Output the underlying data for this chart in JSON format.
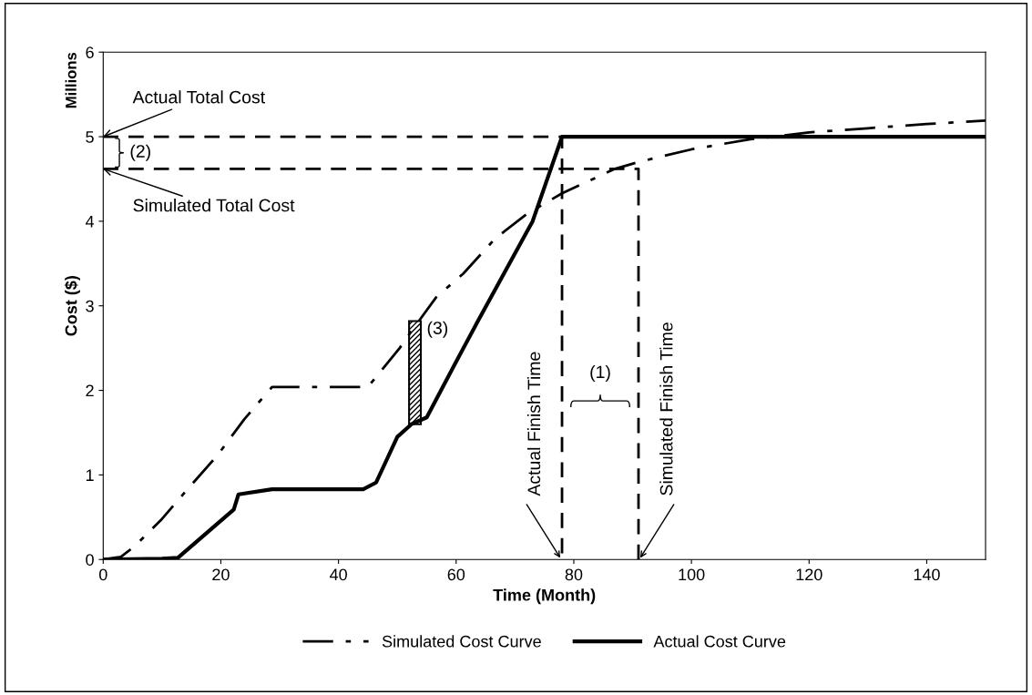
{
  "chart_data": {
    "type": "line",
    "xlabel": "Time (Month)",
    "ylabel": "Cost ($)",
    "xlim": [
      0,
      150
    ],
    "ylim": [
      0,
      6
    ],
    "xticks": [
      0,
      20,
      40,
      60,
      80,
      100,
      120,
      140
    ],
    "yticks": [
      0,
      1,
      2,
      3,
      4,
      5,
      6
    ],
    "grid": false,
    "legend": "bottom",
    "marker": "none",
    "series": [
      {
        "name": "Simulated Cost Curve",
        "color": "#000000",
        "line_style": "dashdot",
        "x": [
          0,
          3,
          5.4,
          10,
          14.7,
          19.4,
          24,
          28.7,
          45,
          50.4,
          52.4,
          56.6,
          61.2,
          66.7,
          72.1,
          78,
          87,
          91,
          100,
          110,
          120,
          130,
          140,
          150
        ],
        "values": [
          0,
          0.03,
          0.16,
          0.48,
          0.86,
          1.23,
          1.66,
          2.04,
          2.04,
          2.5,
          2.7,
          3.1,
          3.38,
          3.8,
          4.09,
          4.33,
          4.62,
          4.7,
          4.85,
          4.97,
          5.05,
          5.1,
          5.15,
          5.19
        ]
      },
      {
        "name": "Actual Cost Curve",
        "color": "#000000",
        "line_style": "solid",
        "x": [
          0,
          10,
          12.7,
          22.2,
          23,
          28.7,
          44.2,
          46.4,
          50,
          52.4,
          55,
          59.7,
          63.7,
          73,
          78,
          150
        ],
        "values": [
          0,
          0.01,
          0.02,
          0.59,
          0.77,
          0.83,
          0.83,
          0.91,
          1.45,
          1.6,
          1.68,
          2.3,
          2.82,
          4.0,
          5.0,
          5.0
        ]
      },
      {
        "color": "#000000",
        "line_style": "dashed",
        "x": [
          0,
          78,
          78
        ],
        "values": [
          5,
          5,
          0
        ]
      },
      {
        "color": "#000000",
        "line_style": "dashed",
        "x": [
          0,
          91,
          91
        ],
        "values": [
          4.62,
          4.62,
          0
        ]
      }
    ],
    "annotations": [
      "Millions",
      {
        "text": "Actual Total Cost",
        "x": 0,
        "y": 5
      },
      {
        "text": "Simulated Total Cost",
        "x": 0,
        "y": 4.62
      },
      "(2)",
      {
        "text": "(3)",
        "x": 53,
        "y": 2.82
      },
      "(1)",
      {
        "text": "Actual Finish Time",
        "x": 78,
        "y": 0
      },
      {
        "text": "Simulated Finish Time",
        "x": 91,
        "y": 0
      }
    ]
  }
}
